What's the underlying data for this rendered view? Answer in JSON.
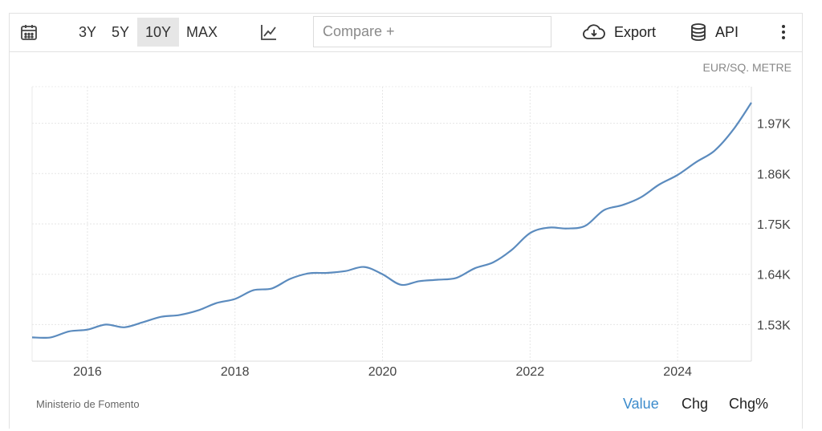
{
  "toolbar": {
    "ranges": [
      "3Y",
      "5Y",
      "10Y",
      "MAX"
    ],
    "active_range": "10Y",
    "compare_placeholder": "Compare +",
    "export_label": "Export",
    "api_label": "API",
    "icons": {
      "calendar": "calendar-icon",
      "chart_type": "line-chart-icon",
      "export": "cloud-download-icon",
      "api": "database-icon",
      "menu": "kebab-menu-icon"
    }
  },
  "footer": {
    "source": "Ministerio de Fomento",
    "tabs": [
      "Value",
      "Chg",
      "Chg%"
    ],
    "active_tab": "Value",
    "active_color": "#3b8bcc"
  },
  "chart_data": {
    "type": "line",
    "title": "",
    "unit_label": "EUR/SQ. METRE",
    "xlabel": "",
    "ylabel": "",
    "x_ticks": [
      "2016",
      "2018",
      "2020",
      "2022",
      "2024"
    ],
    "y_ticks": [
      "1.53K",
      "1.64K",
      "1.75K",
      "1.86K",
      "1.97K"
    ],
    "y_tick_values": [
      1530,
      1640,
      1750,
      1860,
      1970
    ],
    "xlim": [
      2015.25,
      2025.0
    ],
    "ylim": [
      1450,
      2050
    ],
    "grid": true,
    "series_color": "#5b8bbe",
    "series": [
      {
        "x": [
          2015.25,
          2015.5,
          2015.75,
          2016.0,
          2016.25,
          2016.5,
          2016.75,
          2017.0,
          2017.25,
          2017.5,
          2017.75,
          2018.0,
          2018.25,
          2018.5,
          2018.75,
          2019.0,
          2019.25,
          2019.5,
          2019.75,
          2020.0,
          2020.25,
          2020.5,
          2020.75,
          2021.0,
          2021.25,
          2021.5,
          2021.75,
          2022.0,
          2022.25,
          2022.5,
          2022.75,
          2023.0,
          2023.25,
          2023.5,
          2023.75,
          2024.0,
          2024.25,
          2024.5,
          2024.75,
          2025.0
        ],
        "values": [
          1502,
          1502,
          1515,
          1519,
          1530,
          1524,
          1535,
          1547,
          1551,
          1561,
          1577,
          1586,
          1605,
          1609,
          1630,
          1642,
          1643,
          1647,
          1656,
          1640,
          1617,
          1625,
          1628,
          1632,
          1653,
          1666,
          1693,
          1730,
          1742,
          1740,
          1746,
          1780,
          1791,
          1808,
          1836,
          1857,
          1885,
          1910,
          1955,
          2015
        ]
      }
    ]
  }
}
